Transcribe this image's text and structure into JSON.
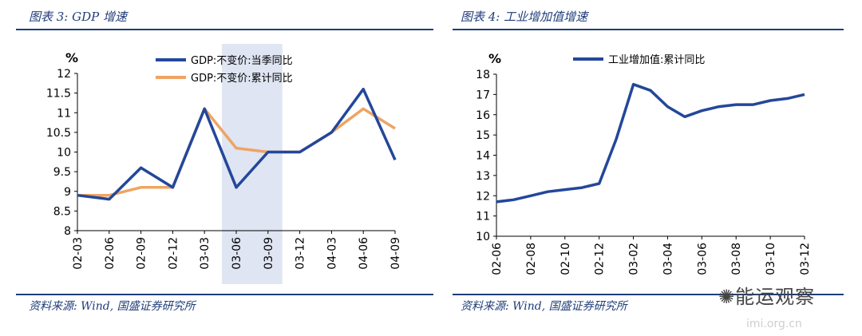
{
  "panels": {
    "left": {
      "title": "图表 3:  GDP 增速",
      "source": "资料来源:  Wind, 国盛证券研究所"
    },
    "right": {
      "title": "图表 4:  工业增加值增速",
      "source": "资料来源:  Wind, 国盛证券研究所"
    }
  },
  "watermark": {
    "name": "能运观察",
    "url": "imi.org.cn"
  },
  "colors": {
    "navy": "#1f3d7a",
    "series_dark": "#23479a",
    "series_orange": "#efa463",
    "shade": "#dfe5f2"
  },
  "chart_data": [
    {
      "type": "line",
      "unit_label": "%",
      "categories": [
        "02-03",
        "02-06",
        "02-09",
        "02-12",
        "03-03",
        "03-06",
        "03-09",
        "03-12",
        "04-03",
        "04-06",
        "04-09"
      ],
      "series": [
        {
          "name": "GDP:不变价:当季同比",
          "color": "#23479a",
          "values": [
            8.9,
            8.8,
            9.6,
            9.1,
            11.1,
            9.1,
            10.0,
            10.0,
            10.5,
            11.6,
            9.8
          ]
        },
        {
          "name": "GDP:不变价:累计同比",
          "color": "#efa463",
          "values": [
            8.9,
            8.9,
            9.1,
            9.1,
            11.1,
            10.1,
            10.0,
            10.0,
            10.5,
            11.1,
            10.6
          ]
        }
      ],
      "ylim": [
        8,
        12
      ],
      "yticks": [
        "8",
        "8.5",
        "9",
        "9.5",
        "10",
        "10.5",
        "11",
        "11.5",
        "12"
      ],
      "shaded_region": [
        "03-06",
        "03-09"
      ],
      "legend_position": "top-center"
    },
    {
      "type": "line",
      "unit_label": "%",
      "x": [
        "02-06",
        "02-07",
        "02-08",
        "02-09",
        "02-10",
        "02-11",
        "02-12",
        "03-01",
        "03-02",
        "03-03",
        "03-04",
        "03-05",
        "03-06",
        "03-07",
        "03-08",
        "03-09",
        "03-10",
        "03-11",
        "03-12"
      ],
      "categories": [
        "02-06",
        "02-08",
        "02-10",
        "02-12",
        "03-02",
        "03-04",
        "03-06",
        "03-08",
        "03-10",
        "03-12"
      ],
      "series": [
        {
          "name": "工业增加值:累计同比",
          "color": "#23479a",
          "values": [
            11.7,
            11.8,
            12.0,
            12.2,
            12.3,
            12.4,
            12.6,
            14.8,
            17.5,
            17.2,
            16.4,
            15.9,
            16.2,
            16.4,
            16.5,
            16.5,
            16.7,
            16.8,
            17.0
          ]
        }
      ],
      "ylim": [
        10,
        18
      ],
      "yticks": [
        "10",
        "11",
        "12",
        "13",
        "14",
        "15",
        "16",
        "17",
        "18"
      ],
      "legend_position": "top-center"
    }
  ]
}
